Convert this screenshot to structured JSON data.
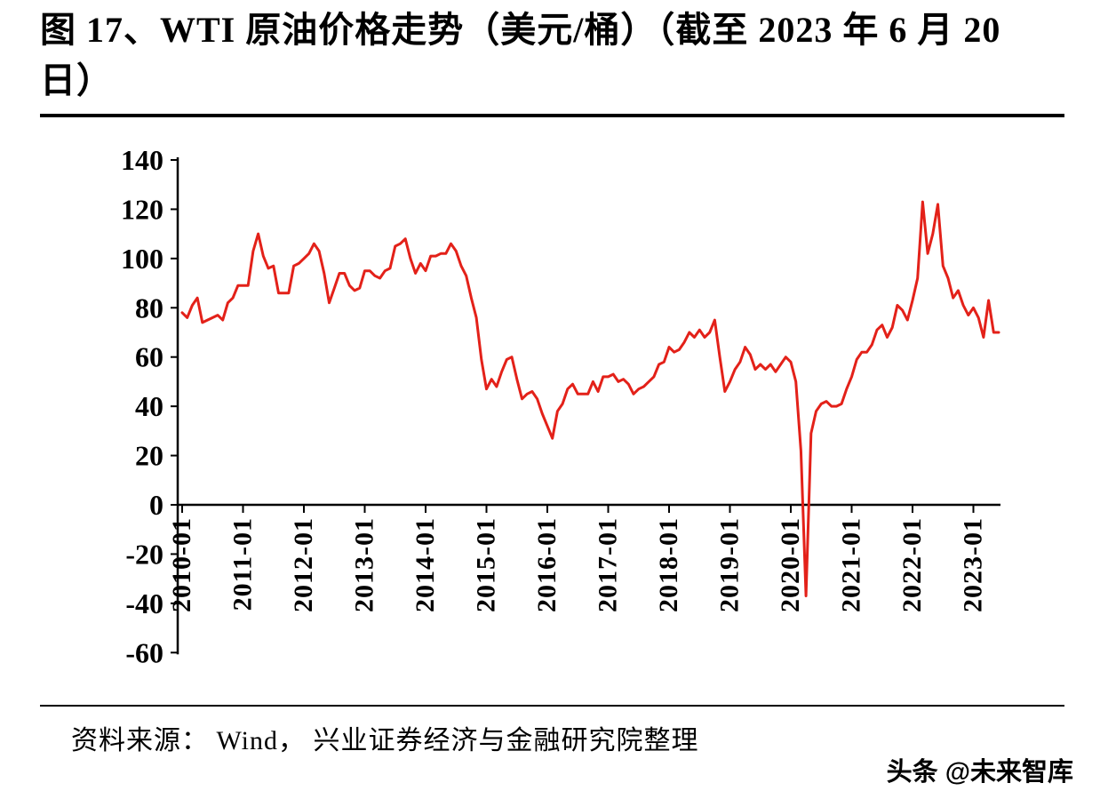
{
  "figure": {
    "title": "图 17、WTI 原油价格走势（美元/桶）（截至 2023 年 6 月 20 日）",
    "source": "资料来源： Wind， 兴业证券经济与金融研究院整理",
    "watermark": "头条 @未来智库"
  },
  "chart_data": {
    "type": "line",
    "title": "WTI原油价格走势（美元/桶）",
    "xlabel": "",
    "ylabel": "",
    "ylim": [
      -60,
      140
    ],
    "yticks": [
      140,
      120,
      100,
      80,
      60,
      40,
      20,
      0,
      -20,
      -40,
      -60
    ],
    "xticks": [
      "2010-01",
      "2011-01",
      "2012-01",
      "2013-01",
      "2014-01",
      "2015-01",
      "2016-01",
      "2017-01",
      "2018-01",
      "2019-01",
      "2020-01",
      "2021-01",
      "2022-01",
      "2023-01"
    ],
    "grid": false,
    "legend": "none",
    "series": [
      {
        "name": "WTI原油价格（美元/桶）",
        "color": "#e32119",
        "start": "2010-01",
        "interval": "monthly",
        "values": [
          78,
          76,
          81,
          84,
          74,
          75,
          76,
          77,
          75,
          82,
          84,
          89,
          89,
          89,
          103,
          110,
          101,
          96,
          97,
          86,
          86,
          86,
          97,
          98,
          100,
          102,
          106,
          103,
          94,
          82,
          88,
          94,
          94,
          89,
          87,
          88,
          95,
          95,
          93,
          92,
          95,
          96,
          105,
          106,
          108,
          100,
          94,
          98,
          95,
          101,
          101,
          102,
          102,
          106,
          103,
          97,
          93,
          84,
          76,
          59,
          47,
          51,
          48,
          54,
          59,
          60,
          51,
          43,
          45,
          46,
          43,
          37,
          32,
          27,
          38,
          41,
          47,
          49,
          45,
          45,
          45,
          50,
          46,
          52,
          52,
          53,
          50,
          51,
          49,
          45,
          47,
          48,
          50,
          52,
          57,
          58,
          64,
          62,
          63,
          66,
          70,
          68,
          71,
          68,
          70,
          75,
          60,
          46,
          50,
          55,
          58,
          64,
          61,
          55,
          57,
          55,
          57,
          54,
          57,
          60,
          58,
          50,
          22,
          -37,
          29,
          38,
          41,
          42,
          40,
          40,
          41,
          47,
          52,
          59,
          62,
          62,
          65,
          71,
          73,
          68,
          72,
          81,
          79,
          75,
          83,
          92,
          123,
          102,
          110,
          122,
          97,
          92,
          84,
          87,
          81,
          77,
          80,
          76,
          68,
          83,
          70,
          70
        ]
      }
    ]
  }
}
